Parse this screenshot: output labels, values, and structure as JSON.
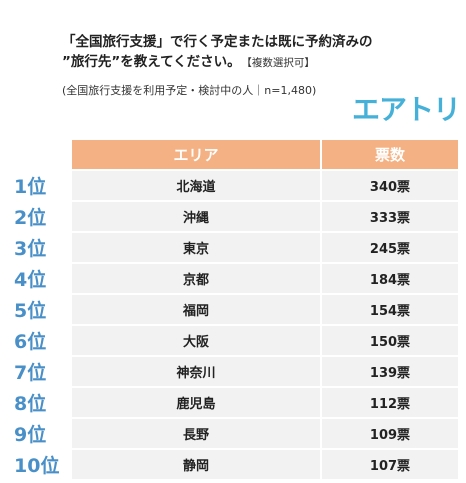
{
  "question": {
    "line1": "「全国旅行支援」で行く予定または既に予約済みの",
    "line2": "”旅行先”を教えてください。",
    "note": "【複数選択可】",
    "sub": "(全国旅行支援を利用予定・検討中の人｜n=1,480)"
  },
  "brand": {
    "logo_text": "エアトリ",
    "color": "#45b0d8"
  },
  "table": {
    "header": {
      "area": "エリア",
      "votes": "票数"
    },
    "header_color": "#f4b183",
    "rows": [
      {
        "rank": "1位",
        "area": "北海道",
        "votes": "340票"
      },
      {
        "rank": "2位",
        "area": "沖縄",
        "votes": "333票"
      },
      {
        "rank": "3位",
        "area": "東京",
        "votes": "245票"
      },
      {
        "rank": "4位",
        "area": "京都",
        "votes": "184票"
      },
      {
        "rank": "5位",
        "area": "福岡",
        "votes": "154票"
      },
      {
        "rank": "6位",
        "area": "大阪",
        "votes": "150票"
      },
      {
        "rank": "7位",
        "area": "神奈川",
        "votes": "139票"
      },
      {
        "rank": "8位",
        "area": "鹿児島",
        "votes": "112票"
      },
      {
        "rank": "9位",
        "area": "長野",
        "votes": "109票"
      },
      {
        "rank": "10位",
        "area": "静岡",
        "votes": "107票"
      }
    ]
  }
}
